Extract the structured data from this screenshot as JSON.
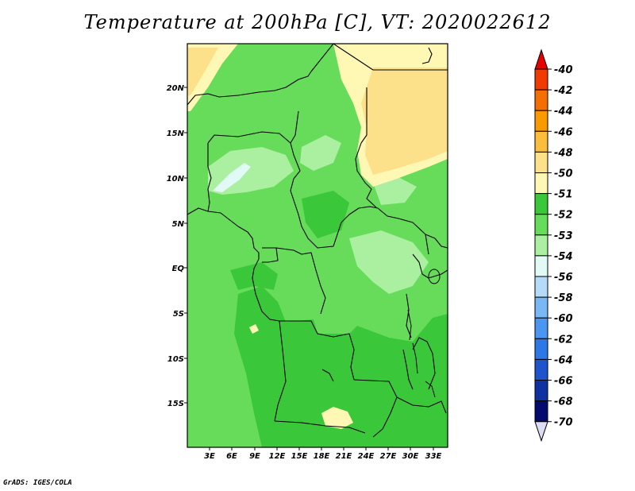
{
  "title": "Temperature at 200hPa [C], VT: 2020022612",
  "credit": "GrADS: IGES/COLA",
  "map": {
    "lat_labels": [
      "20N",
      "15N",
      "10N",
      "5N",
      "EQ",
      "5S",
      "10S",
      "15S"
    ],
    "lon_labels": [
      "3E",
      "6E",
      "9E",
      "12E",
      "15E",
      "18E",
      "21E",
      "24E",
      "27E",
      "30E",
      "33E"
    ]
  },
  "legend": {
    "units": "C",
    "levels": [
      {
        "label": "-40",
        "color": "#e60000"
      },
      {
        "label": "-42",
        "color": "#f03c00"
      },
      {
        "label": "-44",
        "color": "#f56e00"
      },
      {
        "label": "-46",
        "color": "#f89a00"
      },
      {
        "label": "-48",
        "color": "#fbbe3c"
      },
      {
        "label": "-50",
        "color": "#fde18a"
      },
      {
        "label": "-51",
        "color": "#fff7b4"
      },
      {
        "label": "-52",
        "color": "#3ac83a"
      },
      {
        "label": "-53",
        "color": "#66dc5a"
      },
      {
        "label": "-54",
        "color": "#aaf0a0"
      },
      {
        "label": "-56",
        "color": "#e1faf5"
      },
      {
        "label": "-58",
        "color": "#b4dcfa"
      },
      {
        "label": "-60",
        "color": "#78b9f5"
      },
      {
        "label": "-62",
        "color": "#4b96f0"
      },
      {
        "label": "-64",
        "color": "#2d78e6"
      },
      {
        "label": "-66",
        "color": "#1e55cd"
      },
      {
        "label": "-68",
        "color": "#0f32a0"
      },
      {
        "label": "-70",
        "color": "#050a6e"
      }
    ],
    "low_end_color": "#dcdcf5"
  }
}
